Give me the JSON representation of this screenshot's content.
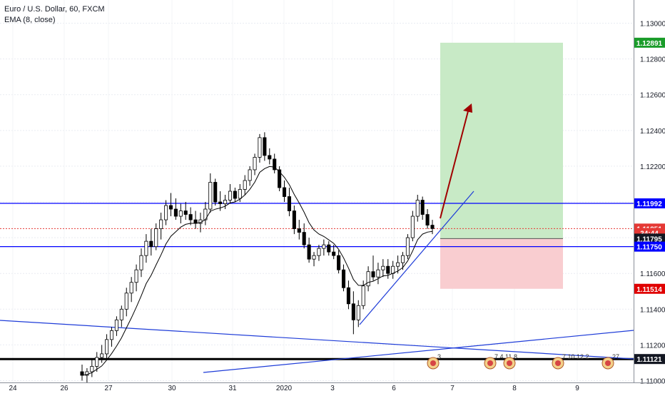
{
  "header": {
    "symbol_line": "Euro / U.S. Dollar, 60, FXCM",
    "indicator_line": "EMA (8, close)"
  },
  "colors": {
    "up_candle": "#26a69a",
    "down_candle": "#ef5350",
    "candle_body_up": "#ffffff",
    "candle_body_down": "#000000",
    "ema": "#000000",
    "level_line": "#0000ff",
    "trend_line": "#1e3cd8",
    "arrow": "#a00000",
    "profit_zone": "#c8eac6",
    "loss_zone": "#f9cdd0",
    "current_price": "#e53935",
    "take_profit_tag": "#1a9c2a",
    "stop_tag": "#e00000",
    "level_tag": "#0000ff",
    "neutral_tag": "#131722"
  },
  "chart_data": {
    "type": "candlestick",
    "instrument": "Euro / U.S. Dollar",
    "timeframe": "60",
    "source": "FXCM",
    "x_ticks": [
      "24",
      "26",
      "27",
      "30",
      "31",
      "2020",
      "3",
      "6",
      "7",
      "8",
      "9"
    ],
    "y_ticks": [
      "1.13000",
      "1.12800",
      "1.12600",
      "1.12400",
      "1.12200",
      "1.12000",
      "1.11800",
      "1.11600",
      "1.11400",
      "1.11200",
      "1.11000"
    ],
    "ylim": [
      1.1099,
      1.1313
    ],
    "price_tags": [
      {
        "label": "1.12891",
        "value": 1.12891,
        "kind": "take_profit"
      },
      {
        "label": "1.11992",
        "value": 1.11992,
        "kind": "level"
      },
      {
        "label": "1.11851",
        "value": 1.11851,
        "kind": "current"
      },
      {
        "label": "34:44",
        "value": 1.11826,
        "kind": "countdown"
      },
      {
        "label": "1.11795",
        "value": 1.11795,
        "kind": "neutral"
      },
      {
        "label": "1.11750",
        "value": 1.1175,
        "kind": "level"
      },
      {
        "label": "1.11514",
        "value": 1.11514,
        "kind": "stop"
      },
      {
        "label": "1.11121",
        "value": 1.11121,
        "kind": "neutral"
      }
    ],
    "horizontal_levels": [
      1.11992,
      1.1175,
      1.11121
    ],
    "current_price": 1.11851,
    "position": {
      "entry": 1.11795,
      "take_profit": 1.12891,
      "stop_loss": 1.11514
    },
    "ema_period": 8,
    "event_markers": [
      "3",
      "7",
      "4",
      "11",
      "8",
      "7",
      "10",
      "12",
      "2",
      "27"
    ],
    "ohlc": [
      [
        1.1105,
        1.1109,
        1.11,
        1.1103
      ],
      [
        1.1103,
        1.1107,
        1.1099,
        1.1105
      ],
      [
        1.1105,
        1.1112,
        1.1102,
        1.1108
      ],
      [
        1.1108,
        1.1116,
        1.1105,
        1.1113
      ],
      [
        1.1113,
        1.112,
        1.111,
        1.1115
      ],
      [
        1.1115,
        1.1126,
        1.1112,
        1.1123
      ],
      [
        1.1123,
        1.113,
        1.1119,
        1.1128
      ],
      [
        1.1128,
        1.1136,
        1.1125,
        1.1134
      ],
      [
        1.1134,
        1.1142,
        1.113,
        1.114
      ],
      [
        1.114,
        1.1152,
        1.1136,
        1.1149
      ],
      [
        1.1149,
        1.1158,
        1.1144,
        1.1155
      ],
      [
        1.1155,
        1.1165,
        1.115,
        1.1162
      ],
      [
        1.1162,
        1.1174,
        1.1158,
        1.117
      ],
      [
        1.117,
        1.1182,
        1.1166,
        1.1178
      ],
      [
        1.1178,
        1.1185,
        1.117,
        1.1175
      ],
      [
        1.1175,
        1.1188,
        1.1173,
        1.1185
      ],
      [
        1.1185,
        1.1194,
        1.1179,
        1.119
      ],
      [
        1.119,
        1.1201,
        1.1187,
        1.1198
      ],
      [
        1.1198,
        1.1205,
        1.1192,
        1.1196
      ],
      [
        1.1196,
        1.1202,
        1.119,
        1.1192
      ],
      [
        1.1192,
        1.1199,
        1.1188,
        1.1195
      ],
      [
        1.1195,
        1.12,
        1.119,
        1.1193
      ],
      [
        1.1193,
        1.1197,
        1.1187,
        1.119
      ],
      [
        1.119,
        1.1195,
        1.1185,
        1.1188
      ],
      [
        1.1188,
        1.1194,
        1.1183,
        1.119
      ],
      [
        1.119,
        1.12,
        1.1187,
        1.1196
      ],
      [
        1.1196,
        1.1216,
        1.1194,
        1.1211
      ],
      [
        1.1211,
        1.1213,
        1.1198,
        1.12
      ],
      [
        1.12,
        1.1206,
        1.1195,
        1.1199
      ],
      [
        1.1199,
        1.1204,
        1.1196,
        1.1201
      ],
      [
        1.1201,
        1.121,
        1.1199,
        1.1206
      ],
      [
        1.1206,
        1.1208,
        1.12,
        1.1202
      ],
      [
        1.1202,
        1.121,
        1.12,
        1.1207
      ],
      [
        1.1207,
        1.1215,
        1.1204,
        1.1212
      ],
      [
        1.1212,
        1.122,
        1.1209,
        1.1218
      ],
      [
        1.1218,
        1.1227,
        1.1215,
        1.1225
      ],
      [
        1.1225,
        1.1238,
        1.1222,
        1.1236
      ],
      [
        1.1236,
        1.1239,
        1.1223,
        1.1226
      ],
      [
        1.1226,
        1.123,
        1.1221,
        1.1224
      ],
      [
        1.1224,
        1.1227,
        1.1216,
        1.1218
      ],
      [
        1.1218,
        1.122,
        1.1206,
        1.1208
      ],
      [
        1.1208,
        1.1212,
        1.12,
        1.1203
      ],
      [
        1.1203,
        1.1208,
        1.1192,
        1.1195
      ],
      [
        1.1195,
        1.1198,
        1.1182,
        1.1185
      ],
      [
        1.1185,
        1.119,
        1.1179,
        1.1183
      ],
      [
        1.1183,
        1.1188,
        1.1174,
        1.1176
      ],
      [
        1.1176,
        1.118,
        1.1166,
        1.1168
      ],
      [
        1.1168,
        1.1172,
        1.1164,
        1.117
      ],
      [
        1.117,
        1.1176,
        1.1167,
        1.1174
      ],
      [
        1.1174,
        1.1179,
        1.117,
        1.1176
      ],
      [
        1.1176,
        1.1178,
        1.117,
        1.1172
      ],
      [
        1.1172,
        1.1176,
        1.1168,
        1.117
      ],
      [
        1.117,
        1.1173,
        1.116,
        1.1162
      ],
      [
        1.1162,
        1.1165,
        1.115,
        1.1152
      ],
      [
        1.1152,
        1.1156,
        1.114,
        1.1143
      ],
      [
        1.1143,
        1.115,
        1.1126,
        1.1134
      ],
      [
        1.1134,
        1.1145,
        1.113,
        1.1142
      ],
      [
        1.1142,
        1.1156,
        1.114,
        1.1153
      ],
      [
        1.1153,
        1.1164,
        1.115,
        1.1161
      ],
      [
        1.1161,
        1.117,
        1.1156,
        1.1158
      ],
      [
        1.1158,
        1.1166,
        1.1154,
        1.1162
      ],
      [
        1.1162,
        1.1168,
        1.1158,
        1.1164
      ],
      [
        1.1164,
        1.1168,
        1.1157,
        1.116
      ],
      [
        1.116,
        1.1167,
        1.1157,
        1.1164
      ],
      [
        1.1164,
        1.117,
        1.116,
        1.1166
      ],
      [
        1.1166,
        1.1172,
        1.1162,
        1.117
      ],
      [
        1.117,
        1.1182,
        1.1168,
        1.118
      ],
      [
        1.118,
        1.1195,
        1.1178,
        1.1192
      ],
      [
        1.1192,
        1.1204,
        1.1189,
        1.1201
      ],
      [
        1.1201,
        1.1203,
        1.119,
        1.1193
      ],
      [
        1.1193,
        1.1196,
        1.1185,
        1.1187
      ],
      [
        1.1187,
        1.119,
        1.1182,
        1.11851
      ]
    ]
  }
}
